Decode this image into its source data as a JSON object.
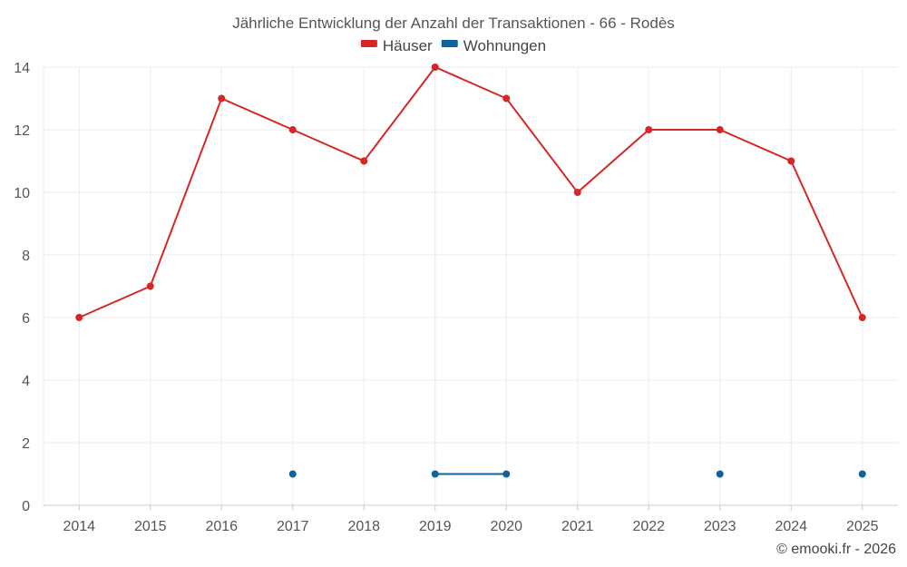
{
  "chart_data": {
    "type": "line",
    "title": "Jährliche Entwicklung der Anzahl der Transaktionen - 66 - Rodès",
    "categories": [
      "2014",
      "2015",
      "2016",
      "2017",
      "2018",
      "2019",
      "2020",
      "2021",
      "2022",
      "2023",
      "2024",
      "2025"
    ],
    "series": [
      {
        "name": "Häuser",
        "color": "#d62728",
        "values": [
          6,
          7,
          13,
          12,
          11,
          14,
          13,
          10,
          12,
          12,
          11,
          6
        ]
      },
      {
        "name": "Wohnungen",
        "color": "#0a64a0",
        "values": [
          null,
          null,
          null,
          1,
          null,
          1,
          1,
          null,
          null,
          1,
          null,
          1
        ]
      }
    ],
    "ylim": [
      0,
      14
    ],
    "yticks": [
      0,
      2,
      4,
      6,
      8,
      10,
      12,
      14
    ],
    "xlabel": "",
    "ylabel": "",
    "legend": "top-center",
    "grid": true
  },
  "credit": "© emooki.fr - 2026"
}
